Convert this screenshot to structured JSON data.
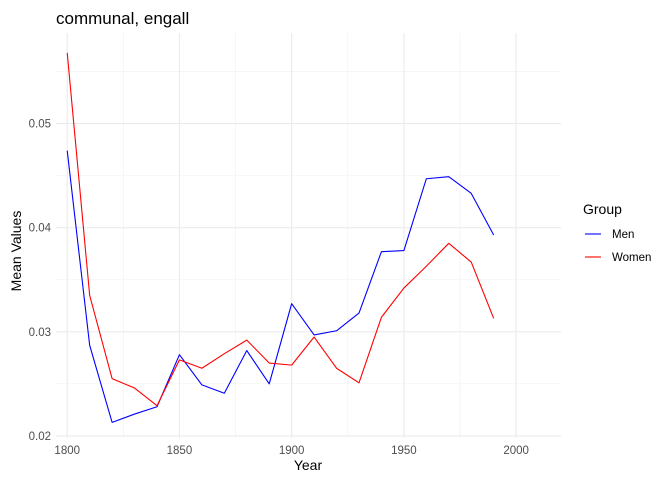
{
  "chart_data": {
    "type": "line",
    "title": "communal, engall",
    "xlabel": "Year",
    "ylabel": "Mean Values",
    "xlim": [
      1795,
      2020
    ],
    "ylim": [
      0.0198,
      0.0587
    ],
    "x_ticks": [
      1800,
      1850,
      1900,
      1950,
      2000
    ],
    "y_ticks": [
      0.02,
      0.03,
      0.04,
      0.05
    ],
    "y_tick_labels": [
      "0.02",
      "0.03",
      "0.04",
      "0.05"
    ],
    "grid": true,
    "legend": {
      "title": "Group",
      "position": "right"
    },
    "x": [
      1800,
      1810,
      1820,
      1830,
      1840,
      1850,
      1860,
      1870,
      1880,
      1890,
      1900,
      1910,
      1920,
      1930,
      1940,
      1950,
      1960,
      1970,
      1980,
      1990
    ],
    "series": [
      {
        "name": "Men",
        "color": "#0000ff",
        "values": [
          0.0474,
          0.0287,
          0.0213,
          0.0221,
          0.0228,
          0.0278,
          0.0249,
          0.0241,
          0.0282,
          0.025,
          0.0327,
          0.0297,
          0.0301,
          0.0318,
          0.0377,
          0.0378,
          0.0447,
          0.0449,
          0.0433,
          0.0393
        ]
      },
      {
        "name": "Women",
        "color": "#ff0000",
        "values": [
          0.0568,
          0.0335,
          0.0255,
          0.0246,
          0.0229,
          0.0273,
          0.0265,
          0.0279,
          0.0292,
          0.027,
          0.0268,
          0.0295,
          0.0265,
          0.0251,
          0.0314,
          0.0342,
          0.0363,
          0.0385,
          0.0367,
          0.0313
        ]
      }
    ]
  }
}
